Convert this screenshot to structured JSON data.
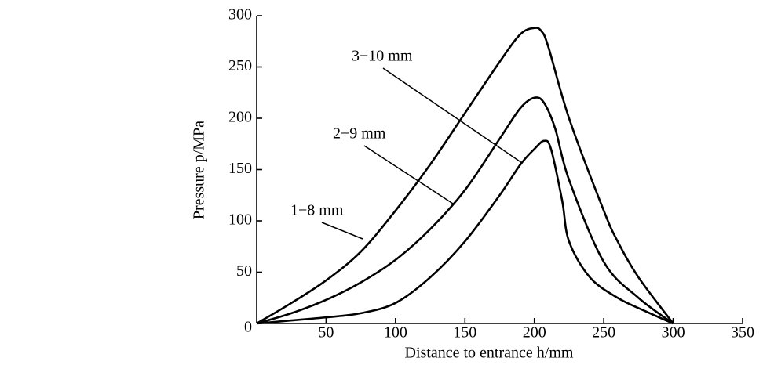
{
  "chart_data": {
    "type": "line",
    "xlabel": "Distance to entrance h/mm",
    "ylabel": "Pressure p/MPa",
    "xlim": [
      0,
      350
    ],
    "ylim": [
      0,
      300
    ],
    "xticks": [
      50,
      100,
      150,
      200,
      250,
      300,
      350
    ],
    "yticks": [
      0,
      50,
      100,
      150,
      200,
      250,
      300
    ],
    "grid": false,
    "series": [
      {
        "name": "1−8 mm",
        "color": "#000000",
        "x": [
          0,
          25,
          50,
          75,
          100,
          125,
          150,
          175,
          190,
          200,
          205,
          210,
          225,
          250,
          260,
          275,
          300
        ],
        "values": [
          0,
          20,
          42,
          70,
          110,
          155,
          205,
          255,
          282,
          288,
          285,
          270,
          200,
          110,
          80,
          45,
          0
        ]
      },
      {
        "name": "2−9 mm",
        "color": "#000000",
        "x": [
          0,
          25,
          50,
          75,
          100,
          125,
          150,
          175,
          190,
          200,
          207,
          215,
          225,
          250,
          275,
          300
        ],
        "values": [
          0,
          10,
          23,
          40,
          62,
          92,
          130,
          180,
          210,
          220,
          215,
          190,
          140,
          60,
          25,
          0
        ]
      },
      {
        "name": "3−10 mm",
        "color": "#000000",
        "x": [
          0,
          25,
          50,
          75,
          100,
          125,
          150,
          175,
          190,
          200,
          207,
          212,
          220,
          225,
          240,
          260,
          280,
          300
        ],
        "values": [
          0,
          3,
          6,
          10,
          20,
          45,
          80,
          125,
          155,
          170,
          178,
          170,
          120,
          80,
          45,
          25,
          12,
          0
        ]
      }
    ]
  }
}
